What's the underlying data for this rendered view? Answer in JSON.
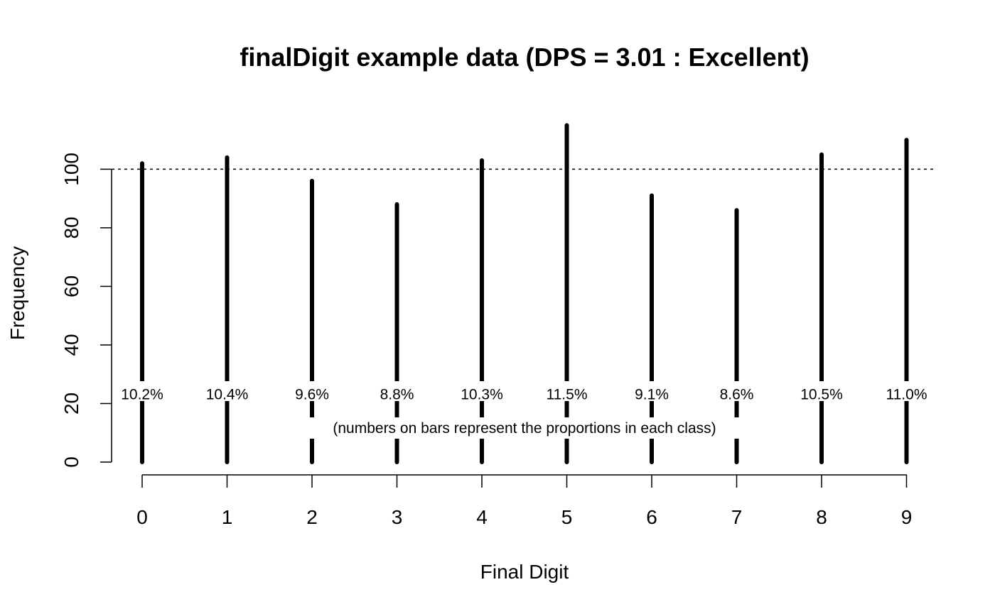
{
  "chart_data": {
    "type": "bar",
    "title": "finalDigit example data (DPS = 3.01 : Excellent)",
    "xlabel": "Final Digit",
    "ylabel": "Frequency",
    "categories": [
      "0",
      "1",
      "2",
      "3",
      "4",
      "5",
      "6",
      "7",
      "8",
      "9"
    ],
    "values": [
      102,
      104,
      96,
      88,
      103,
      115,
      91,
      86,
      105,
      110
    ],
    "bar_labels": [
      "10.2%",
      "10.4%",
      "9.6%",
      "8.8%",
      "10.3%",
      "11.5%",
      "9.1%",
      "8.6%",
      "10.5%",
      "11.0%"
    ],
    "annotation": "(numbers on bars represent the proportions in each class)",
    "y_ticks": [
      "0",
      "20",
      "40",
      "60",
      "80",
      "100"
    ],
    "ylim": [
      0,
      115
    ],
    "reference_line": 100,
    "grid": false,
    "bar_color": "#000000"
  }
}
